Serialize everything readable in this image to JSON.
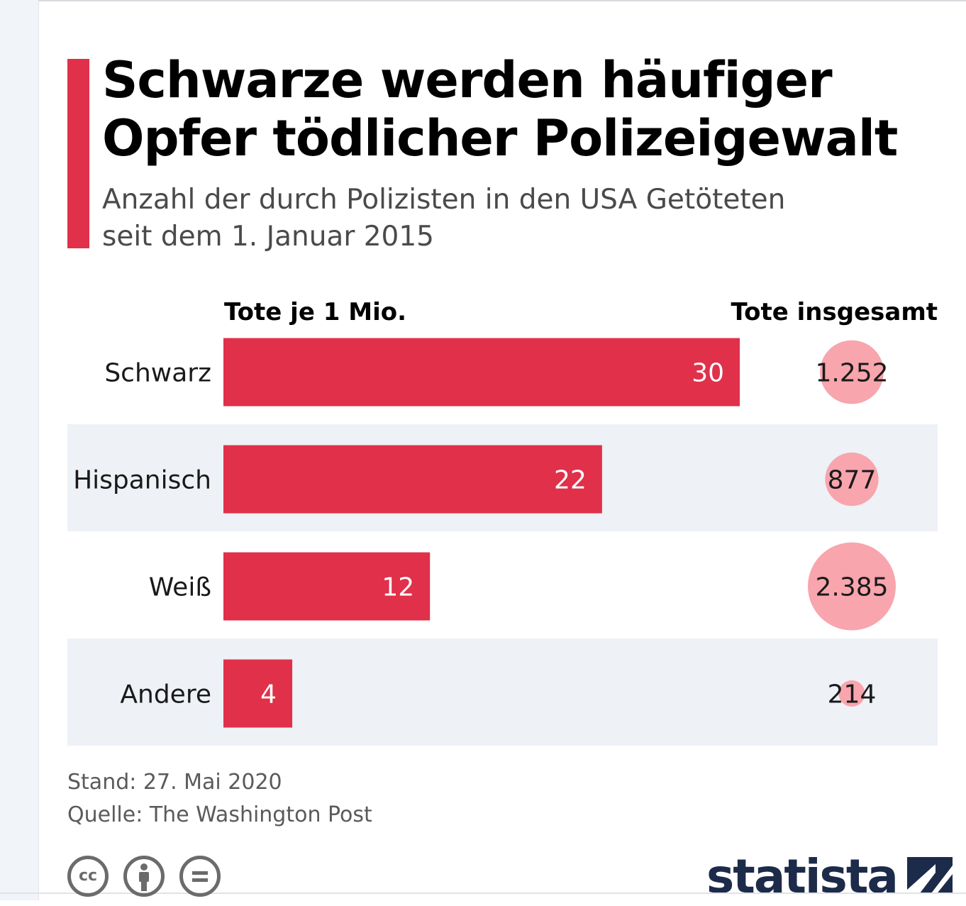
{
  "header": {
    "title_line1": "Schwarze werden häufiger",
    "title_line2": "Opfer tödlicher Polizeigewalt",
    "subtitle_line1": "Anzahl der durch Polizisten in den USA Getöteten",
    "subtitle_line2": "seit dem 1. Januar 2015"
  },
  "colors": {
    "accent": "#e0304a",
    "bar": "#e0304a",
    "bubble": "#f8a5ad",
    "row_band": "#eef1f6"
  },
  "chart_data": {
    "type": "bar",
    "orientation": "horizontal",
    "column_headers": {
      "bars": "Tote je 1 Mio.",
      "totals": "Tote insgesamt"
    },
    "categories": [
      "Schwarz",
      "Hispanisch",
      "Weiß",
      "Andere"
    ],
    "series": [
      {
        "name": "Tote je 1 Mio.",
        "values": [
          30,
          22,
          12,
          4
        ],
        "labels": [
          "30",
          "22",
          "12",
          "4"
        ]
      },
      {
        "name": "Tote insgesamt",
        "values": [
          1252,
          877,
          2385,
          214
        ],
        "labels": [
          "1.252",
          "877",
          "2.385",
          "214"
        ],
        "mark": "bubble"
      }
    ],
    "xlim": [
      0,
      30
    ],
    "grid": false,
    "legend": "none"
  },
  "footer": {
    "date": "Stand: 27. Mai 2020",
    "source": "Quelle: The Washington Post"
  },
  "license_icons": [
    "cc-icon",
    "by-icon",
    "nd-icon"
  ],
  "logo": {
    "text": "statista",
    "mark_icon": "statista-mark-icon"
  }
}
